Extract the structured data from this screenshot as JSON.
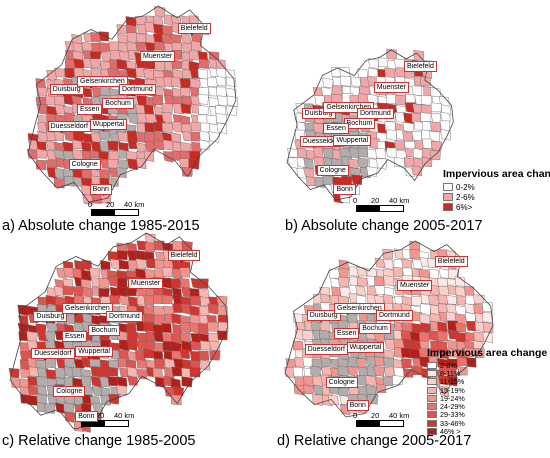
{
  "panels": [
    {
      "caption": "a) Absolute change 1985-2015"
    },
    {
      "caption": "b) Absolute change 2005-2017"
    },
    {
      "caption": "c) Relative change 1985-2005"
    },
    {
      "caption": "d) Relative change 2005-2017"
    }
  ],
  "cities": [
    "Bielefeld",
    "Muenster",
    "Duisburg",
    "Gelsenkirchen",
    "Dortmund",
    "Bochum",
    "Essen",
    "Duesseldorf",
    "Wuppertal",
    "Cologne",
    "Bonn"
  ],
  "scale": {
    "ticks": [
      "0",
      "20",
      "40 km"
    ]
  },
  "legend_absolute": {
    "title": "Impervious area change",
    "classes": [
      {
        "label": "0-2%",
        "color": "#fdfdfd"
      },
      {
        "label": "2-6%",
        "color": "#f1a7a7"
      },
      {
        "label": "6%>",
        "color": "#c92a22"
      }
    ]
  },
  "legend_relative": {
    "title": "Impervious area change",
    "classes": [
      {
        "label": "2-8%",
        "color": "#ffffff"
      },
      {
        "label": "8-11%",
        "color": "#fde8e6"
      },
      {
        "label": "11-15%",
        "color": "#fbd0cc"
      },
      {
        "label": "15-19%",
        "color": "#f7b5b0"
      },
      {
        "label": "19-24%",
        "color": "#f19590"
      },
      {
        "label": "24-29%",
        "color": "#ea7570"
      },
      {
        "label": "29-33%",
        "color": "#df5450"
      },
      {
        "label": "33-46%",
        "color": "#d03530"
      },
      {
        "label": "46% >",
        "color": "#b3201c"
      }
    ]
  },
  "colors": {
    "grey": "#b4abab",
    "border": "#666666"
  }
}
